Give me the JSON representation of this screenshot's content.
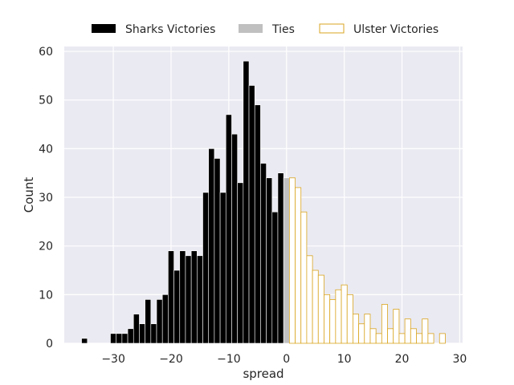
{
  "chart_data": {
    "type": "bar",
    "subtype": "histogram",
    "xlabel": "spread",
    "ylabel": "Count",
    "xlim": [
      -38.5,
      30.5
    ],
    "ylim": [
      0,
      61
    ],
    "xticks": [
      -30,
      -20,
      -10,
      0,
      10,
      20,
      30
    ],
    "yticks": [
      0,
      10,
      20,
      30,
      40,
      50,
      60
    ],
    "xtick_labels": [
      "−30",
      "−20",
      "−10",
      "0",
      "10",
      "20",
      "30"
    ],
    "ytick_labels": [
      "0",
      "10",
      "20",
      "30",
      "40",
      "50",
      "60"
    ],
    "grid": true,
    "legend": {
      "position": "top-center"
    },
    "series": [
      {
        "name": "Sharks Victories",
        "color": "#000000",
        "style": "filled",
        "x": [
          -35,
          -30,
          -29,
          -28,
          -27,
          -26,
          -25,
          -24,
          -23,
          -22,
          -21,
          -20,
          -19,
          -18,
          -17,
          -16,
          -15,
          -14,
          -13,
          -12,
          -11,
          -10,
          -9,
          -8,
          -7,
          -6,
          -5,
          -4,
          -3,
          -2,
          -1
        ],
        "values": [
          1,
          2,
          2,
          2,
          3,
          6,
          4,
          9,
          4,
          9,
          10,
          19,
          15,
          19,
          18,
          19,
          18,
          31,
          40,
          38,
          31,
          47,
          43,
          33,
          58,
          53,
          49,
          37,
          34,
          27,
          35
        ]
      },
      {
        "name": "Ties",
        "color": "#c0c0c0",
        "style": "filled",
        "x": [
          0
        ],
        "values": [
          34
        ]
      },
      {
        "name": "Ulster Victories",
        "color": "#daa520",
        "style": "outline",
        "x": [
          1,
          2,
          3,
          4,
          5,
          6,
          7,
          8,
          9,
          10,
          11,
          12,
          13,
          14,
          15,
          16,
          17,
          18,
          19,
          20,
          21,
          22,
          23,
          24,
          25,
          26,
          27
        ],
        "values": [
          34,
          32,
          27,
          18,
          15,
          14,
          10,
          9,
          11,
          12,
          10,
          6,
          4,
          6,
          3,
          2,
          8,
          3,
          7,
          2,
          5,
          3,
          2,
          5,
          2,
          0,
          2
        ]
      }
    ]
  }
}
